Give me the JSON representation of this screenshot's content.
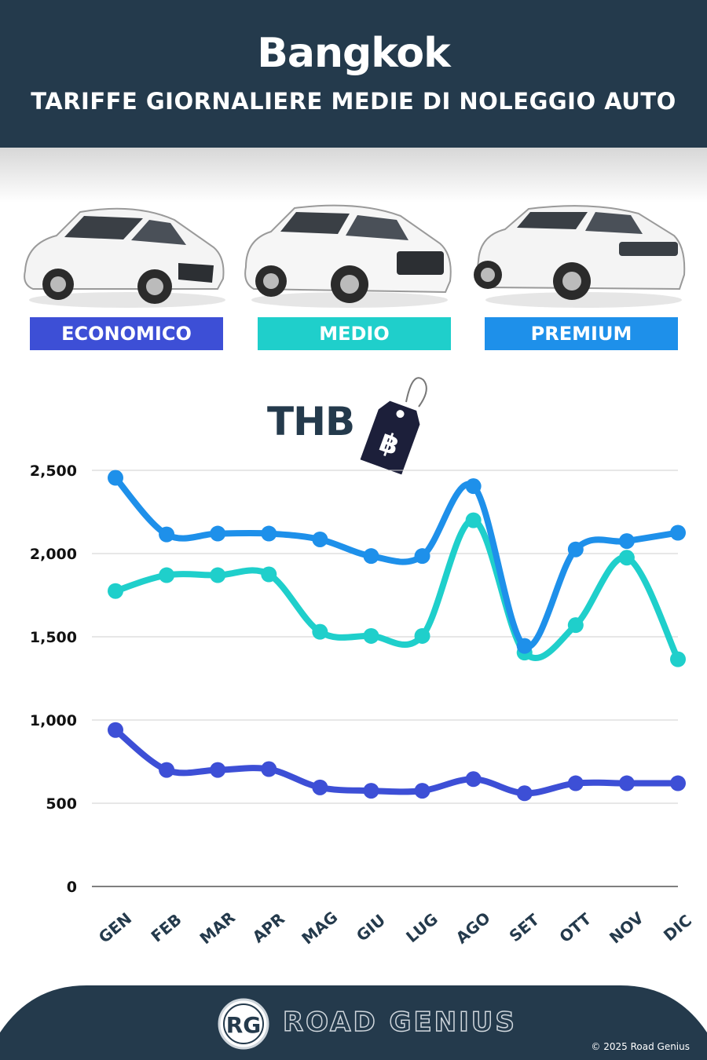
{
  "header": {
    "city": "Bangkok",
    "subtitle": "TARIFFE GIORNALIERE MEDIE DI NOLEGGIO AUTO"
  },
  "categories": [
    {
      "label": "ECONOMICO",
      "color": "#3d4fd6"
    },
    {
      "label": "MEDIO",
      "color": "#1fcfcb"
    },
    {
      "label": "PREMIUM",
      "color": "#1e90ea"
    }
  ],
  "currency": {
    "code": "THB",
    "symbol": "฿"
  },
  "chart_data": {
    "type": "line",
    "categories": [
      "GEN",
      "FEB",
      "MAR",
      "APR",
      "MAG",
      "GIU",
      "LUG",
      "AGO",
      "SET",
      "OTT",
      "NOV",
      "DIC"
    ],
    "series": [
      {
        "name": "ECONOMICO",
        "color": "#3d4fd6",
        "values": [
          940,
          700,
          700,
          705,
          595,
          575,
          575,
          645,
          560,
          620,
          620,
          620
        ]
      },
      {
        "name": "MEDIO",
        "color": "#1fcfcb",
        "values": [
          1775,
          1870,
          1870,
          1875,
          1530,
          1505,
          1505,
          2200,
          1405,
          1570,
          1975,
          1365
        ]
      },
      {
        "name": "PREMIUM",
        "color": "#1e90ea",
        "values": [
          2455,
          2115,
          2120,
          2120,
          2085,
          1985,
          1985,
          2405,
          1445,
          2025,
          2075,
          2125
        ]
      }
    ],
    "yticks": [
      "0",
      "500",
      "1,000",
      "1,500",
      "2,000",
      "2,500"
    ],
    "ytick_values": [
      0,
      500,
      1000,
      1500,
      2000,
      2500
    ],
    "ylim": [
      0,
      2500
    ],
    "grid": true
  },
  "footer": {
    "logo_text": "RG",
    "brand": "ROAD GENIUS",
    "copyright": "© 2025 Road Genius"
  }
}
